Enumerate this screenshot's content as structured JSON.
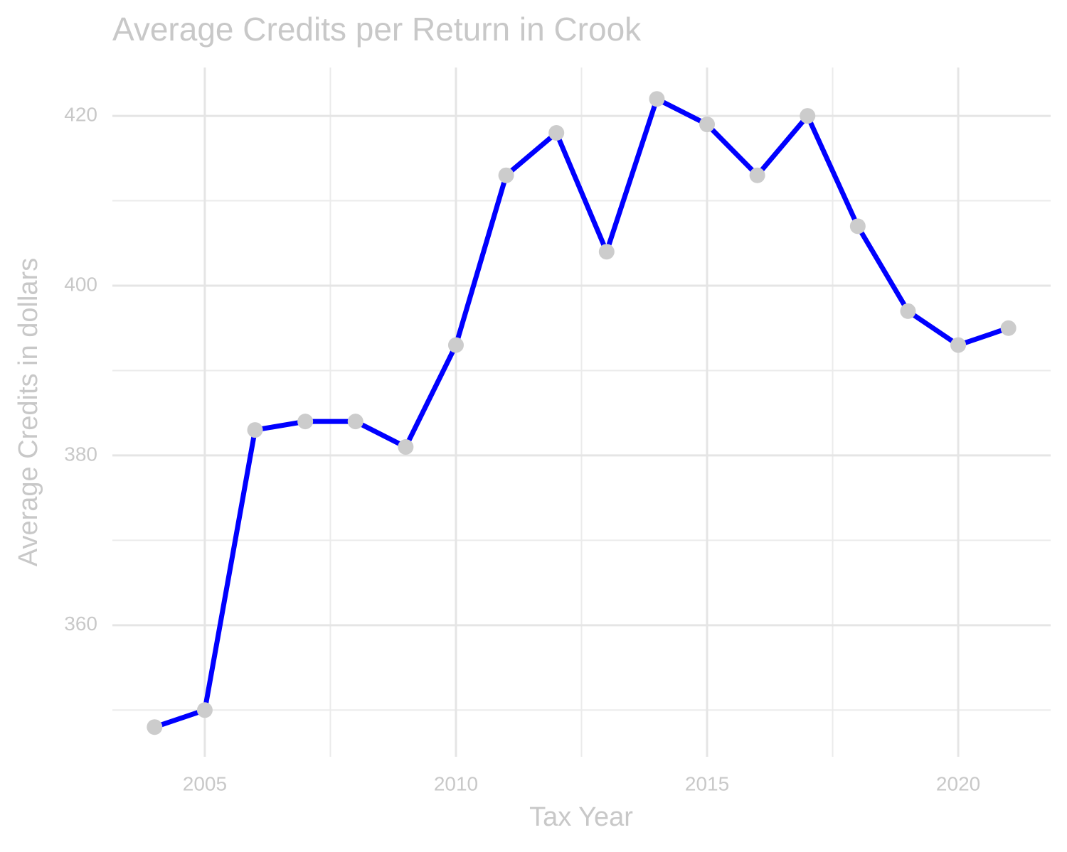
{
  "chart_data": {
    "type": "line",
    "title": "Average Credits per Return in Crook",
    "x_label": "Tax Year",
    "y_label": "Average Credits in dollars",
    "x": [
      2004,
      2005,
      2006,
      2007,
      2008,
      2009,
      2010,
      2011,
      2012,
      2013,
      2014,
      2015,
      2016,
      2017,
      2018,
      2019,
      2020,
      2021
    ],
    "series": [
      {
        "name": "Average Credits",
        "color": "#0000ff",
        "point_color": "#cccccc",
        "values": [
          348,
          350,
          383,
          384,
          384,
          381,
          393,
          413,
          418,
          404,
          422,
          419,
          413,
          420,
          407,
          397,
          393,
          395
        ]
      }
    ],
    "xlim": [
      2003.16,
      2021.84
    ],
    "xticks": [
      2005,
      2010,
      2015,
      2020
    ],
    "xminor": [
      2007.5,
      2012.5,
      2017.5
    ],
    "ylim": [
      344.5,
      425.7
    ],
    "yticks": [
      360,
      380,
      400,
      420
    ],
    "yminor": [
      350,
      370,
      390,
      410
    ],
    "grid": true
  }
}
